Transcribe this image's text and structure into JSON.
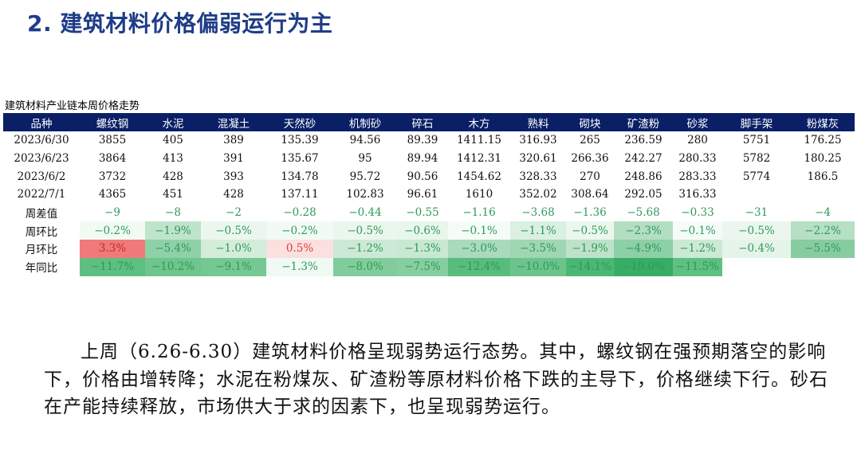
{
  "title": "2. 建筑材料价格偏弱运行为主",
  "table": {
    "caption": "建筑材料产业链本周价格走势",
    "headers": [
      "品种",
      "螺纹钢",
      "水泥",
      "混凝土",
      "天然砂",
      "机制砂",
      "碎石",
      "木方",
      "熟料",
      "砌块",
      "矿渣粉",
      "砂浆",
      "脚手架",
      "粉煤灰"
    ],
    "rows": [
      {
        "label": "2023/6/30",
        "cells": [
          "3855",
          "405",
          "389",
          "135.39",
          "94.56",
          "89.39",
          "1411.15",
          "316.93",
          "265",
          "236.59",
          "280",
          "5751",
          "176.25"
        ]
      },
      {
        "label": "2023/6/23",
        "cells": [
          "3864",
          "413",
          "391",
          "135.67",
          "95",
          "89.94",
          "1412.31",
          "320.61",
          "266.36",
          "242.27",
          "280.33",
          "5782",
          "180.25"
        ]
      },
      {
        "label": "2023/6/2",
        "cells": [
          "3732",
          "428",
          "393",
          "134.78",
          "95.72",
          "90.56",
          "1454.62",
          "328.33",
          "270",
          "248.86",
          "283.33",
          "5774",
          "186.5"
        ]
      },
      {
        "label": "2022/7/1",
        "cells": [
          "4365",
          "451",
          "428",
          "137.11",
          "102.83",
          "96.61",
          "1610",
          "352.02",
          "308.64",
          "292.05",
          "316.33",
          "",
          ""
        ]
      },
      {
        "label": "周差值",
        "cells": [
          "−9",
          "−8",
          "−2",
          "−0.28",
          "−0.44",
          "−0.55",
          "−1.16",
          "−3.68",
          "−1.36",
          "−5.68",
          "−0.33",
          "−31",
          "−4"
        ]
      },
      {
        "label": "周环比",
        "cells": [
          "−0.2%",
          "−1.9%",
          "−0.5%",
          "−0.2%",
          "−0.5%",
          "−0.6%",
          "−0.1%",
          "−1.1%",
          "−0.5%",
          "−2.3%",
          "−0.1%",
          "−0.5%",
          "−2.2%"
        ]
      },
      {
        "label": "月环比",
        "cells": [
          "3.3%",
          "−5.4%",
          "−1.0%",
          "0.5%",
          "−1.2%",
          "−1.3%",
          "−3.0%",
          "−3.5%",
          "−1.9%",
          "−4.9%",
          "−1.2%",
          "−0.4%",
          "−5.5%"
        ]
      },
      {
        "label": "年同比",
        "cells": [
          "−11.7%",
          "−10.2%",
          "−9.1%",
          "−1.3%",
          "−8.0%",
          "−7.5%",
          "−12.4%",
          "−10.0%",
          "−14.1%",
          "−19.0%",
          "−11.5%",
          "",
          ""
        ]
      }
    ],
    "heat": {
      "5": [
        "#f2faf4",
        "#bfe3cb",
        "#ebf7ee",
        "#f2faf4",
        "#ebf7ee",
        "#e8f6ec",
        "#f5fbf7",
        "#daf0e1",
        "#ebf7ee",
        "#b3dec2",
        "#f5fbf7",
        "#ebf7ee",
        "#b6dfc4"
      ],
      "6": [
        "#f07a7a",
        "#8fd0a8",
        "#d3edda",
        "#fbe0e0",
        "#cce9d5",
        "#c8e8d2",
        "#a8dabb",
        "#9fd6b3",
        "#bde2c9",
        "#8dcfa6",
        "#cce9d5",
        "#e4f4e9",
        "#86cca0"
      ],
      "7": [
        "#5fbf82",
        "#6ec58d",
        "#76c893",
        "#f0f9f3",
        "#82cc9c",
        "#86ce9f",
        "#58bc7d",
        "#6cc48c",
        "#4cb775",
        "#38ad65",
        "#5ec081",
        "",
        ""
      ]
    }
  },
  "paragraph": "上周（6.26-6.30）建筑材料价格呈现弱势运行态势。其中，螺纹钢在强预期落空的影响下，价格由增转降；水泥在粉煤灰、矿渣粉等原材料价格下跌的主导下，价格继续下行。砂石在产能持续释放，市场供大于求的因素下，也呈现弱势运行。"
}
